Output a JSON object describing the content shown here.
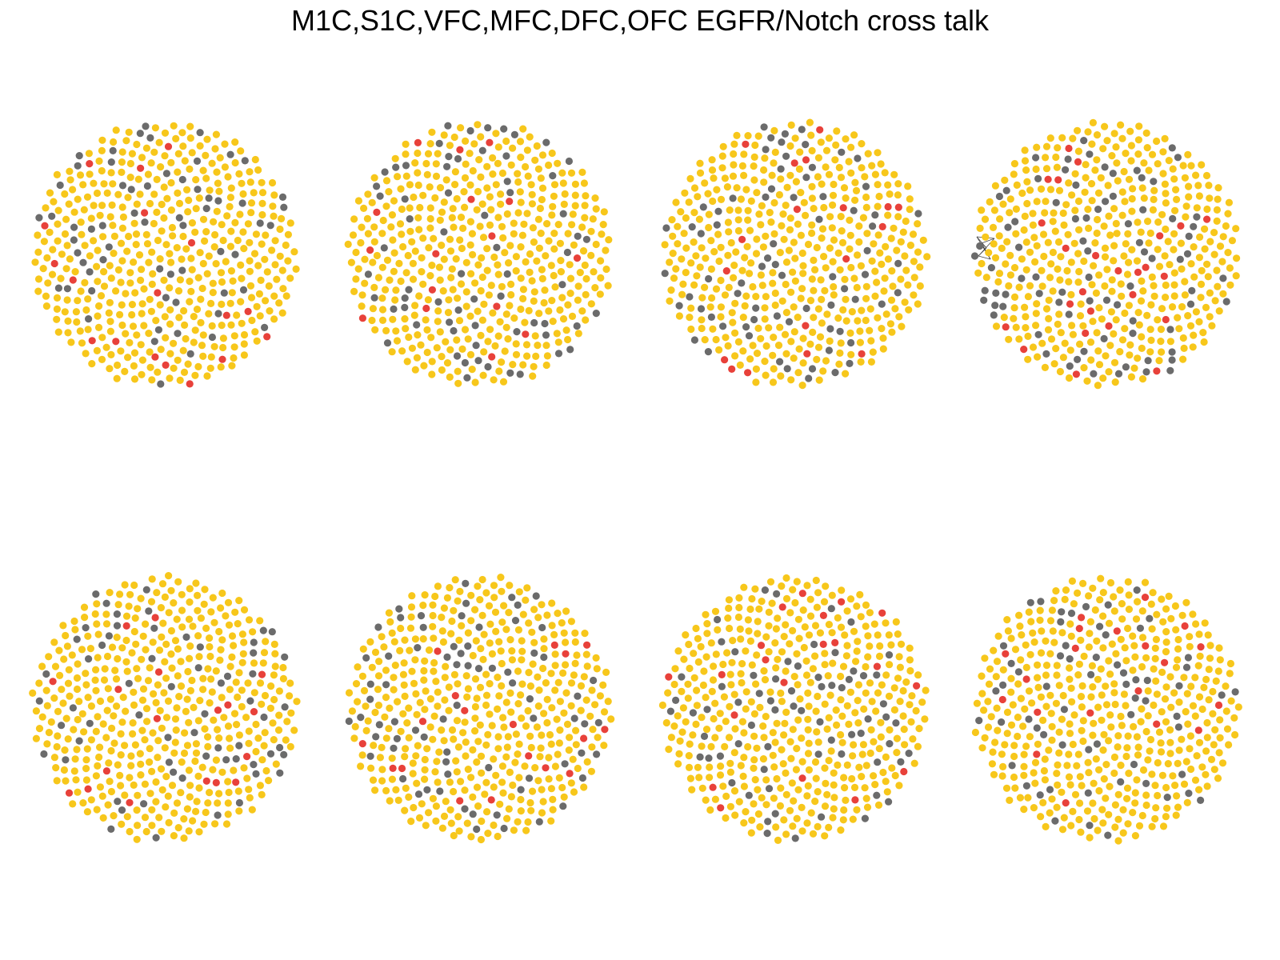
{
  "title": "M1C,S1C,VFC,MFC,DFC,OFC EGFR/Notch cross talk",
  "colors": {
    "node_default": "#F7C71B",
    "node_gray": "#6B6B6B",
    "node_red": "#E8413A"
  },
  "chart_data": {
    "type": "network",
    "layout": "circular packed node clouds, 2 rows x 4 columns",
    "panels": [
      {
        "row": 1,
        "col": 1,
        "yellow": 420,
        "gray": 62,
        "red": 18,
        "has_edges": false
      },
      {
        "row": 1,
        "col": 2,
        "yellow": 418,
        "gray": 66,
        "red": 16,
        "has_edges": false
      },
      {
        "row": 1,
        "col": 3,
        "yellow": 410,
        "gray": 72,
        "red": 18,
        "has_edges": false
      },
      {
        "row": 1,
        "col": 4,
        "yellow": 395,
        "gray": 80,
        "red": 25,
        "has_edges": true
      },
      {
        "row": 2,
        "col": 1,
        "yellow": 420,
        "gray": 62,
        "red": 18,
        "has_edges": false
      },
      {
        "row": 2,
        "col": 2,
        "yellow": 410,
        "gray": 72,
        "red": 18,
        "has_edges": false
      },
      {
        "row": 2,
        "col": 3,
        "yellow": 412,
        "gray": 68,
        "red": 20,
        "has_edges": false
      },
      {
        "row": 2,
        "col": 4,
        "yellow": 418,
        "gray": 62,
        "red": 20,
        "has_edges": false
      }
    ]
  }
}
